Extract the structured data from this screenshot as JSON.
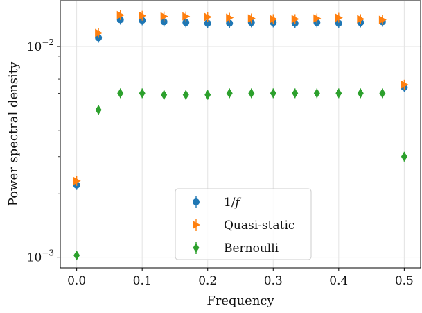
{
  "chart_data": {
    "type": "scatter",
    "title": "",
    "xlabel": "Frequency",
    "ylabel": "Power spectral density",
    "xlim": [
      -0.025,
      0.525
    ],
    "ylim": [
      0.00089,
      0.0165
    ],
    "yscale": "log",
    "grid": true,
    "legend_position": "lower-center",
    "x_ticks": [
      {
        "value": 0.0,
        "label": "0.0"
      },
      {
        "value": 0.1,
        "label": "0.1"
      },
      {
        "value": 0.2,
        "label": "0.2"
      },
      {
        "value": 0.3,
        "label": "0.3"
      },
      {
        "value": 0.4,
        "label": "0.4"
      },
      {
        "value": 0.5,
        "label": "0.5"
      }
    ],
    "y_ticks": [
      {
        "value": 0.001,
        "base": "10",
        "exp": "−3"
      },
      {
        "value": 0.01,
        "base": "10",
        "exp": "−2"
      }
    ],
    "series": [
      {
        "name": "1/f",
        "color": "#1f77b4",
        "marker": "circle",
        "x": [
          0.0,
          0.0333,
          0.0667,
          0.1,
          0.1333,
          0.1667,
          0.2,
          0.2333,
          0.2667,
          0.3,
          0.3333,
          0.3667,
          0.4,
          0.4333,
          0.4667,
          0.5
        ],
        "y": [
          0.0022,
          0.011,
          0.0134,
          0.0133,
          0.0131,
          0.013,
          0.0129,
          0.0129,
          0.013,
          0.013,
          0.0129,
          0.013,
          0.0129,
          0.013,
          0.0131,
          0.0064
        ]
      },
      {
        "name": "Quasi-static",
        "color": "#ff7f0e",
        "marker": "triangle-right",
        "x": [
          0.0,
          0.0333,
          0.0667,
          0.1,
          0.1333,
          0.1667,
          0.2,
          0.2333,
          0.2667,
          0.3,
          0.3333,
          0.3667,
          0.4,
          0.4333,
          0.4667,
          0.5
        ],
        "y": [
          0.0023,
          0.0116,
          0.0141,
          0.014,
          0.0139,
          0.0139,
          0.0138,
          0.0137,
          0.0136,
          0.0135,
          0.0135,
          0.0136,
          0.0137,
          0.0135,
          0.0134,
          0.0066
        ]
      },
      {
        "name": "Bernoulli",
        "color": "#2ca02c",
        "marker": "diamond",
        "x": [
          0.0,
          0.0333,
          0.0667,
          0.1,
          0.1333,
          0.1667,
          0.2,
          0.2333,
          0.2667,
          0.3,
          0.3333,
          0.3667,
          0.4,
          0.4333,
          0.4667,
          0.5
        ],
        "y": [
          0.00102,
          0.005,
          0.006,
          0.006,
          0.0059,
          0.0059,
          0.0059,
          0.006,
          0.006,
          0.006,
          0.006,
          0.006,
          0.006,
          0.006,
          0.006,
          0.003
        ]
      }
    ],
    "legend_labels": [
      {
        "prefix": "1/",
        "italic": "f"
      },
      {
        "prefix": "Quasi-static",
        "italic": ""
      },
      {
        "prefix": "Bernoulli",
        "italic": ""
      }
    ]
  }
}
